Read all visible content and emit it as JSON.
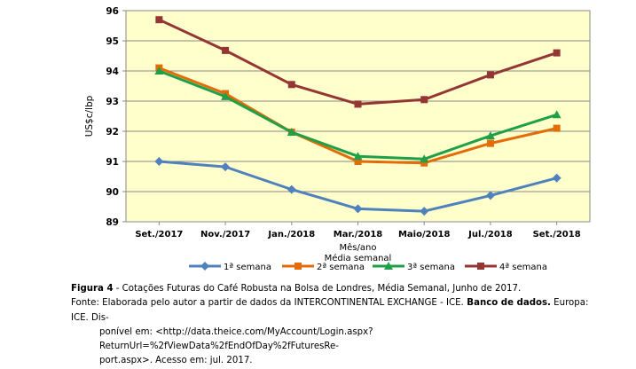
{
  "chart_data": {
    "type": "line",
    "categories": [
      "Set./2017",
      "Nov./2017",
      "Jan./2018",
      "Mar./2018",
      "Maio/2018",
      "Jul./2018",
      "Set./2018"
    ],
    "ylabel": "US$c/lbp",
    "xlabel": [
      "Mês/ano",
      "Média semanal"
    ],
    "ylim": [
      89,
      96
    ],
    "yticks": [
      89,
      90,
      91,
      92,
      93,
      94,
      95,
      96
    ],
    "grid": true,
    "legend_position": "bottom",
    "series": [
      {
        "name": "1ª semana",
        "color": "#4F81BD",
        "marker": "diamond",
        "values": [
          91.0,
          90.82,
          90.07,
          89.43,
          89.35,
          89.87,
          90.45
        ]
      },
      {
        "name": "2ª semana",
        "color": "#E36C09",
        "marker": "square",
        "values": [
          94.1,
          93.25,
          91.97,
          91.0,
          90.95,
          91.6,
          92.1
        ]
      },
      {
        "name": "3ª semana",
        "color": "#1F9F47",
        "marker": "triangle",
        "values": [
          94.0,
          93.15,
          91.97,
          91.17,
          91.08,
          91.85,
          92.55
        ]
      },
      {
        "name": "4ª semana",
        "color": "#943634",
        "marker": "square",
        "values": [
          95.7,
          94.68,
          93.55,
          92.9,
          93.05,
          93.87,
          94.6
        ]
      }
    ]
  },
  "caption": {
    "figure_label": "Figura 4",
    "figure_text": " - Cotações Futuras do Café Robusta na Bolsa de Londres, Média Semanal, Junho de 2017.",
    "source_label": "Fonte:",
    "source_text": " Elaborada pelo autor a partir de dados da INTERCONTINENTAL EXCHANGE - ICE.",
    "source_bold": " Banco de dados.",
    "source_tail": " Europa: ICE. Dis-",
    "source_line2": "ponível em: <http://data.theice.com/MyAccount/Login.aspx?ReturnUrl=%2fViewData%2fEndOfDay%2fFuturesRe-",
    "source_line3": "port.aspx>. Acesso em: jul. 2017."
  }
}
